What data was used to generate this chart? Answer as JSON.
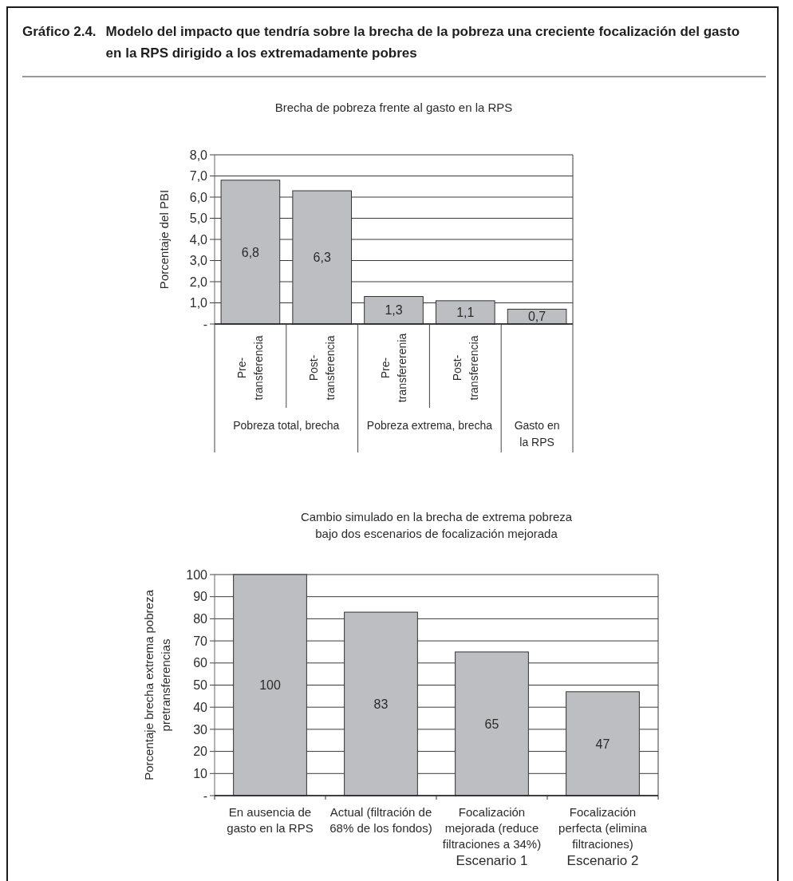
{
  "chart_data": [
    {
      "type": "bar",
      "title": "Gráfico 2.4. Modelo del impacto que tendría sobre la brecha de la pobreza una creciente focalización del gasto en la RPS dirigido a los extremadamente pobres",
      "subtitle": "Brecha de pobreza frente al gasto en la RPS",
      "ylabel": "Porcentaje del PBI",
      "categories": [
        "Pre-transferencia",
        "Post-transferencia",
        "Pre-transfererenia",
        "Post-transferencia",
        null
      ],
      "values": [
        6.8,
        6.3,
        1.3,
        1.1,
        0.7
      ],
      "value_labels": [
        "6,8",
        "6,3",
        "1,3",
        "1,1",
        "0,7"
      ],
      "color": "#bdbec2",
      "ylim": [
        0,
        8
      ],
      "yticks": [
        {
          "value": 0,
          "label": "-"
        },
        {
          "value": 1,
          "label": "1,0"
        },
        {
          "value": 2,
          "label": "2,0"
        },
        {
          "value": 3,
          "label": "3,0"
        },
        {
          "value": 4,
          "label": "4,0"
        },
        {
          "value": 5,
          "label": "5,0"
        },
        {
          "value": 6,
          "label": "6,0"
        },
        {
          "value": 7,
          "label": "7,0"
        },
        {
          "value": 8,
          "label": "8,0"
        }
      ],
      "grid": "y",
      "annotations": [
        "Pobreza total, brecha",
        "Pobreza extrema, brecha",
        "Gasto en la RPS"
      ]
    },
    {
      "type": "bar",
      "title": "Cambio simulado en la brecha de extrema pobreza bajo dos escenarios de focalización mejorada",
      "ylabel": "Porcentaje brecha extrema pobreza pretransferencias",
      "categories": [
        "En ausencia de gasto en la RPS",
        "Actual (filtración de 68% de los fondos)",
        "Focalización mejorada (reduce filtraciones a 34%)",
        "Focalización perfecta (elimina filtraciones)"
      ],
      "values": [
        100,
        83,
        65,
        47
      ],
      "data_labels": true,
      "color": "#bdbec2",
      "ylim": [
        0,
        100
      ],
      "yticks": [
        {
          "value": 0,
          "label": "-"
        },
        10,
        20,
        30,
        40,
        50,
        60,
        70,
        80,
        90,
        100
      ],
      "grid": "y",
      "annotations": [
        "Escenario 1",
        "Escenario 2"
      ]
    }
  ]
}
